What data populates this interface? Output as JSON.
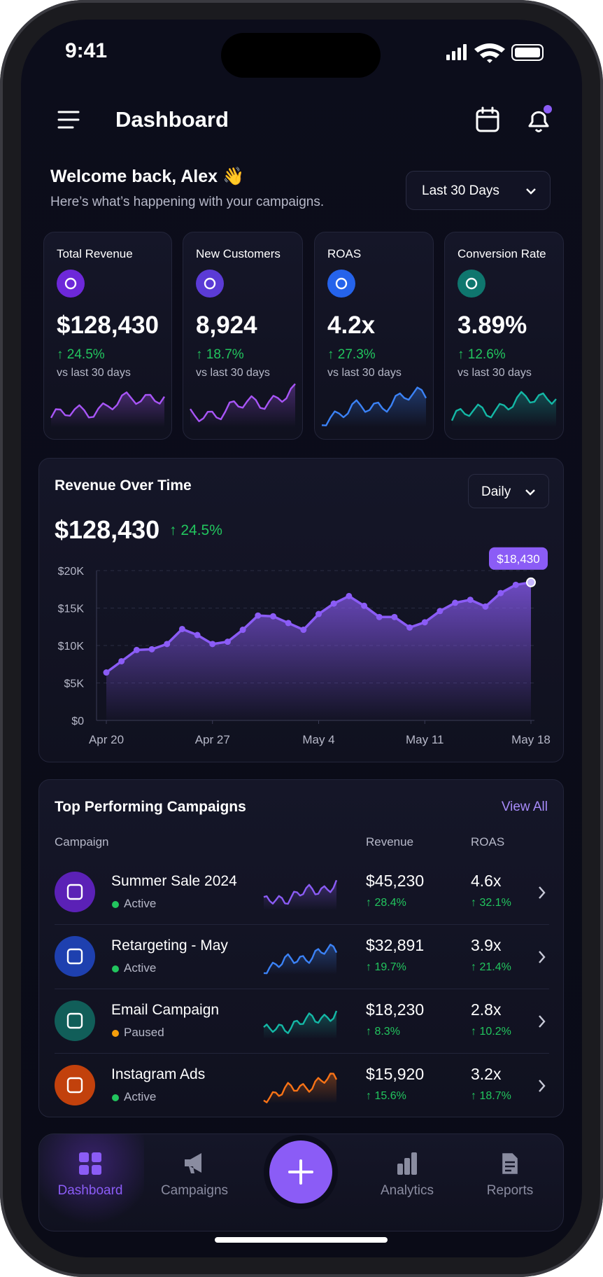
{
  "status_bar": {
    "time": "9:41"
  },
  "header": {
    "title": "Dashboard"
  },
  "welcome": {
    "title": "Welcome back, Alex 👋",
    "subtitle": "Here’s what’s happening with your campaigns.",
    "range": "Last 30 Days"
  },
  "kpis": [
    {
      "label": "Total Revenue",
      "value": "$128,430",
      "change": "↑ 24.5%",
      "note": "vs last 30 days",
      "color": "#a855f7",
      "icon_color": "#6d28d9"
    },
    {
      "label": "New Customers",
      "value": "8,924",
      "change": "↑ 18.7%",
      "note": "vs last 30 days",
      "color": "#a855f7",
      "icon_color": "#5b3bd6"
    },
    {
      "label": "ROAS",
      "value": "4.2x",
      "change": "↑ 27.3%",
      "note": "vs last 30 days",
      "color": "#3b82f6",
      "icon_color": "#2563eb"
    },
    {
      "label": "Conversion Rate",
      "value": "3.89%",
      "change": "↑ 12.6%",
      "note": "vs last 30 days",
      "color": "#14b8a6",
      "icon_color": "#0f766e"
    }
  ],
  "revenue": {
    "title": "Revenue Over Time",
    "total": "$128,430",
    "change": "↑ 24.5%",
    "period": "Daily"
  },
  "chart_data": {
    "type": "line",
    "categories": [
      "Apr 20",
      null,
      null,
      null,
      null,
      null,
      null,
      "Apr 27",
      null,
      null,
      null,
      null,
      null,
      null,
      "May 4",
      null,
      null,
      null,
      null,
      null,
      null,
      "May 11",
      null,
      null,
      null,
      null,
      null,
      null,
      "May 18"
    ],
    "values": [
      6400,
      7900,
      9400,
      9500,
      10200,
      12200,
      11400,
      10200,
      10500,
      12100,
      14000,
      13900,
      13000,
      12100,
      14200,
      15600,
      16600,
      15300,
      13800,
      13800,
      12400,
      13100,
      14600,
      15700,
      16100,
      15200,
      17000,
      18100,
      18430
    ],
    "value_labels": [
      null,
      null,
      null,
      null,
      null,
      null,
      null,
      null,
      null,
      null,
      null,
      null,
      null,
      null,
      null,
      null,
      null,
      null,
      null,
      null,
      null,
      null,
      null,
      null,
      null,
      null,
      null,
      null,
      "$18,430"
    ],
    "color": "#8b5cf6",
    "ylim": [
      0,
      20000
    ],
    "yticks": [
      {
        "value": 0,
        "label": "$0"
      },
      {
        "value": 5000,
        "label": "$5K"
      },
      {
        "value": 10000,
        "label": "$10K"
      },
      {
        "value": 15000,
        "label": "$15K"
      },
      {
        "value": 20000,
        "label": "$20K"
      }
    ],
    "grid": true
  },
  "campaigns": {
    "title": "Top Performing Campaigns",
    "link": "View All",
    "columns": [
      "Campaign",
      "Revenue",
      "ROAS"
    ],
    "rows": [
      {
        "name": "Summer Sale 2024",
        "status": "Active",
        "revenue": "$45,230",
        "revenue_change": "↑ 28.4%",
        "roas": "4.6x",
        "roas_change": "↑ 32.1%",
        "color": "#8b5cf6",
        "icon_color": "#5b21b6",
        "status_color": "#22c55e"
      },
      {
        "name": "Retargeting - May",
        "status": "Active",
        "revenue": "$32,891",
        "revenue_change": "↑ 19.7%",
        "roas": "3.9x",
        "roas_change": "↑ 21.4%",
        "color": "#3b82f6",
        "icon_color": "#1e40af",
        "status_color": "#22c55e"
      },
      {
        "name": "Email Campaign",
        "status": "Paused",
        "revenue": "$18,230",
        "revenue_change": "↑ 8.3%",
        "roas": "2.8x",
        "roas_change": "↑ 10.2%",
        "color": "#14b8a6",
        "icon_color": "#115e59",
        "status_color": "#f59e0b"
      },
      {
        "name": "Instagram Ads",
        "status": "Active",
        "revenue": "$15,920",
        "revenue_change": "↑ 15.6%",
        "roas": "3.2x",
        "roas_change": "↑ 18.7%",
        "color": "#f97316",
        "icon_color": "#c2410c",
        "status_color": "#22c55e"
      }
    ]
  },
  "nav": [
    "Dashboard",
    "Campaigns",
    "Analytics",
    "Reports"
  ]
}
